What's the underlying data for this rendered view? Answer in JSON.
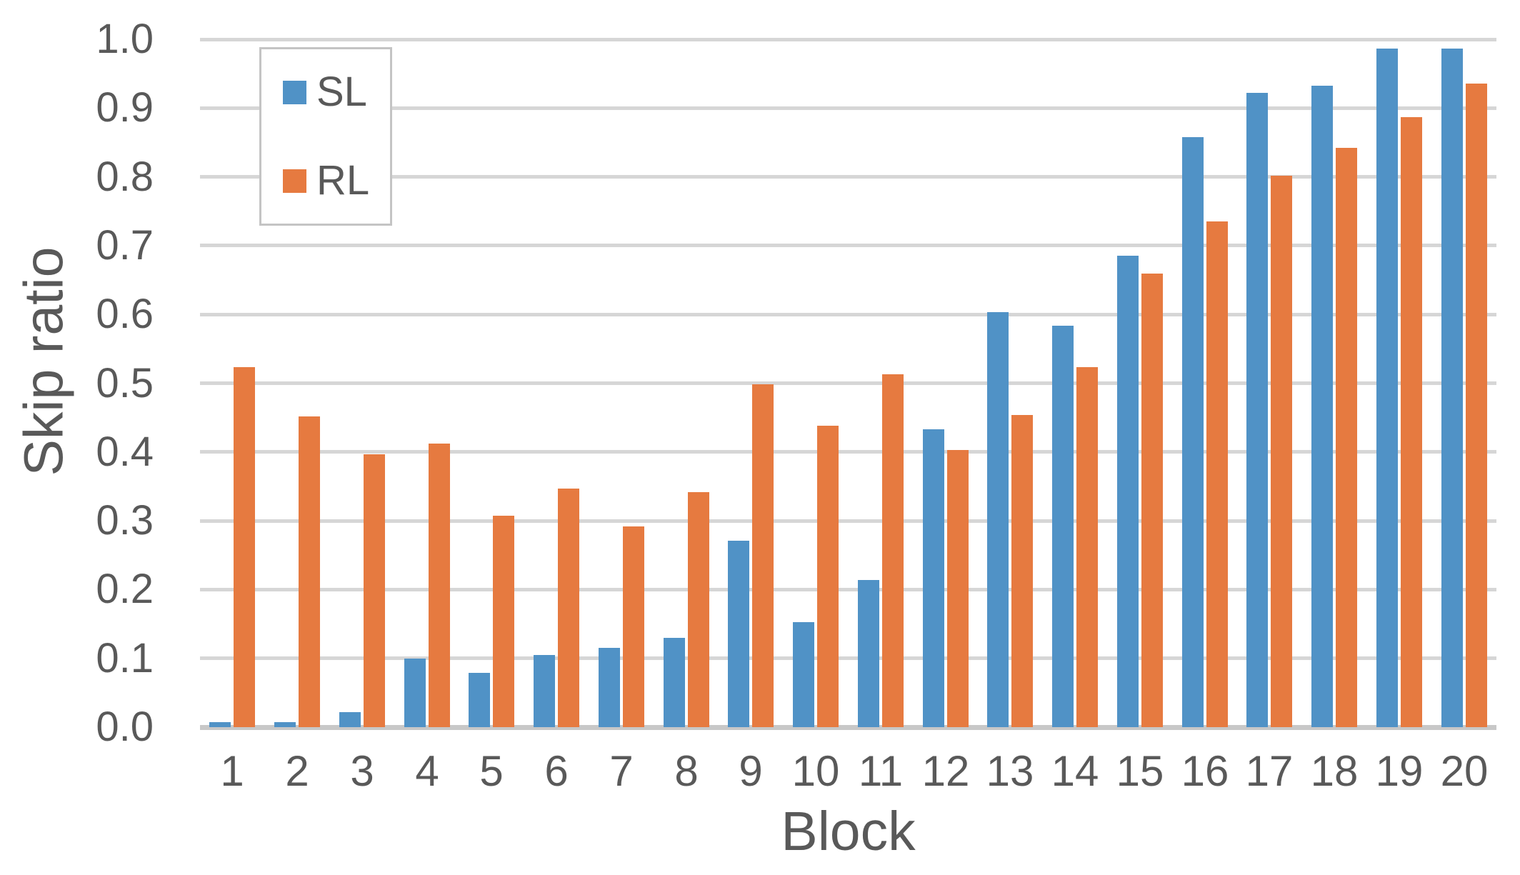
{
  "chart_data": {
    "type": "bar",
    "title": "",
    "xlabel": "Block",
    "ylabel": "Skip ratio",
    "categories": [
      "1",
      "2",
      "3",
      "4",
      "5",
      "6",
      "7",
      "8",
      "9",
      "10",
      "11",
      "12",
      "13",
      "14",
      "15",
      "16",
      "17",
      "18",
      "19",
      "20"
    ],
    "series": [
      {
        "name": "SL",
        "color": "#5092C6",
        "values": [
          0.007,
          0.007,
          0.022,
          0.1,
          0.079,
          0.105,
          0.115,
          0.13,
          0.271,
          0.153,
          0.214,
          0.433,
          0.603,
          0.584,
          0.685,
          0.858,
          0.922,
          0.932,
          0.986,
          0.986
        ]
      },
      {
        "name": "RL",
        "color": "#E67A40",
        "values": [
          0.523,
          0.452,
          0.397,
          0.412,
          0.307,
          0.347,
          0.292,
          0.342,
          0.498,
          0.438,
          0.513,
          0.403,
          0.454,
          0.523,
          0.659,
          0.735,
          0.802,
          0.842,
          0.887,
          0.936
        ]
      }
    ],
    "ylim": [
      0,
      1
    ],
    "y_tick_labels": [
      "0.0",
      "0.1",
      "0.2",
      "0.3",
      "0.4",
      "0.5",
      "0.6",
      "0.7",
      "0.8",
      "0.9",
      "1.0"
    ],
    "grid": true,
    "legend_position": "top-left"
  },
  "colors": {
    "axis_text": "#595959",
    "gridline": "#D6D6D6",
    "axis_line": "#C8C8C8",
    "background": "#FFFFFF"
  }
}
